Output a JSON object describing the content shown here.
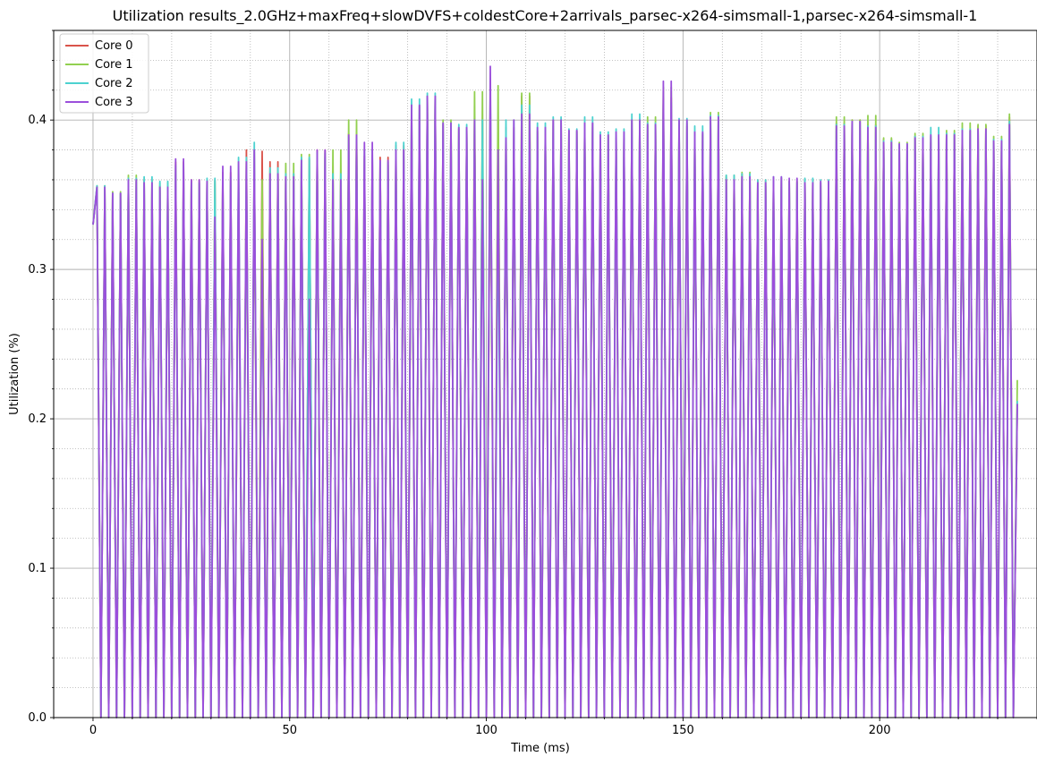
{
  "chart_data": {
    "type": "line",
    "title": "Utilization results_2.0GHz+maxFreq+slowDVFS+coldestCore+2arrivals_parsec-x264-simsmall-1,parsec-x264-simsmall-1",
    "xlabel": "Time (ms)",
    "ylabel": "Utilization (%)",
    "xlim": [
      -10,
      240
    ],
    "ylim": [
      0,
      0.46
    ],
    "xticks": [
      0,
      50,
      100,
      150,
      200
    ],
    "xtick_labels": [
      "0",
      "50",
      "100",
      "150",
      "200"
    ],
    "yticks": [
      0.0,
      0.1,
      0.2,
      0.3,
      0.4
    ],
    "ytick_labels": [
      "0.0",
      "0.1",
      "0.2",
      "0.3",
      "0.4"
    ],
    "grid": "major solid, minor dotted",
    "legend_position": "top-left",
    "pattern_note": "Each core alternates ~1 ms busy samples with ~1 ms idle (0) samples; peaks listed per window",
    "series": [
      {
        "name": "Core 0",
        "color": "#d9534a",
        "start": 0.33,
        "end": 0.21,
        "drop_at": 235,
        "peaks": [
          [
            1,
            0.355
          ],
          [
            5,
            0.351
          ],
          [
            9,
            0.359
          ],
          [
            13,
            0.36
          ],
          [
            17,
            0.356
          ],
          [
            21,
            0.372
          ],
          [
            25,
            0.36
          ],
          [
            29,
            0.36
          ],
          [
            30,
            0.374
          ],
          [
            33,
            0.365
          ],
          [
            37,
            0.36
          ],
          [
            39,
            0.38
          ],
          [
            41,
            0.379
          ],
          [
            45,
            0.372
          ],
          [
            49,
            0.364
          ],
          [
            53,
            0.374
          ],
          [
            57,
            0.38
          ],
          [
            61,
            0.362
          ],
          [
            65,
            0.391
          ],
          [
            69,
            0.376
          ],
          [
            70,
            0.306
          ],
          [
            73,
            0.375
          ],
          [
            77,
            0.383
          ],
          [
            81,
            0.41
          ],
          [
            85,
            0.416
          ],
          [
            89,
            0.397
          ],
          [
            93,
            0.394
          ],
          [
            97,
            0.4
          ],
          [
            98,
            0.428
          ],
          [
            100,
            0.427
          ],
          [
            102,
            0.418
          ],
          [
            105,
            0.395
          ],
          [
            109,
            0.416
          ],
          [
            113,
            0.393
          ],
          [
            117,
            0.4
          ],
          [
            121,
            0.393
          ],
          [
            125,
            0.398
          ],
          [
            129,
            0.39
          ],
          [
            133,
            0.388
          ],
          [
            137,
            0.4
          ],
          [
            141,
            0.396
          ],
          [
            145,
            0.415
          ],
          [
            149,
            0.396
          ],
          [
            153,
            0.391
          ],
          [
            157,
            0.4
          ],
          [
            161,
            0.362
          ],
          [
            165,
            0.364
          ],
          [
            169,
            0.36
          ],
          [
            173,
            0.361
          ],
          [
            177,
            0.359
          ],
          [
            181,
            0.36
          ],
          [
            185,
            0.358
          ],
          [
            189,
            0.398
          ],
          [
            193,
            0.4
          ],
          [
            197,
            0.397
          ],
          [
            201,
            0.387
          ],
          [
            205,
            0.383
          ],
          [
            209,
            0.389
          ],
          [
            213,
            0.385
          ],
          [
            217,
            0.391
          ],
          [
            221,
            0.393
          ],
          [
            225,
            0.396
          ],
          [
            229,
            0.386
          ],
          [
            233,
            0.402
          ]
        ]
      },
      {
        "name": "Core 1",
        "color": "#92d050",
        "start": 0.33,
        "end": 0.226,
        "drop_at": 235,
        "peaks": [
          [
            1,
            0.356
          ],
          [
            5,
            0.352
          ],
          [
            9,
            0.363
          ],
          [
            13,
            0.357
          ],
          [
            17,
            0.358
          ],
          [
            21,
            0.364
          ],
          [
            25,
            0.358
          ],
          [
            29,
            0.359
          ],
          [
            33,
            0.36
          ],
          [
            37,
            0.358
          ],
          [
            41,
            0.36
          ],
          [
            45,
            0.366
          ],
          [
            49,
            0.371
          ],
          [
            53,
            0.377
          ],
          [
            57,
            0.375
          ],
          [
            61,
            0.38
          ],
          [
            65,
            0.4
          ],
          [
            69,
            0.374
          ],
          [
            73,
            0.37
          ],
          [
            77,
            0.376
          ],
          [
            81,
            0.4
          ],
          [
            85,
            0.413
          ],
          [
            89,
            0.4
          ],
          [
            93,
            0.395
          ],
          [
            97,
            0.419
          ],
          [
            101,
            0.423
          ],
          [
            105,
            0.38
          ],
          [
            109,
            0.418
          ],
          [
            113,
            0.392
          ],
          [
            117,
            0.396
          ],
          [
            121,
            0.392
          ],
          [
            125,
            0.395
          ],
          [
            129,
            0.39
          ],
          [
            133,
            0.387
          ],
          [
            137,
            0.399
          ],
          [
            141,
            0.402
          ],
          [
            145,
            0.422
          ],
          [
            149,
            0.398
          ],
          [
            153,
            0.39
          ],
          [
            157,
            0.405
          ],
          [
            161,
            0.363
          ],
          [
            165,
            0.365
          ],
          [
            169,
            0.356
          ],
          [
            173,
            0.355
          ],
          [
            177,
            0.359
          ],
          [
            181,
            0.358
          ],
          [
            185,
            0.356
          ],
          [
            189,
            0.402
          ],
          [
            193,
            0.4
          ],
          [
            197,
            0.403
          ],
          [
            201,
            0.388
          ],
          [
            205,
            0.385
          ],
          [
            209,
            0.391
          ],
          [
            213,
            0.389
          ],
          [
            217,
            0.393
          ],
          [
            221,
            0.398
          ],
          [
            225,
            0.397
          ],
          [
            229,
            0.389
          ],
          [
            233,
            0.404
          ]
        ]
      },
      {
        "name": "Core 2",
        "color": "#4dd2d0",
        "start": 0.33,
        "end": 0.212,
        "drop_at": 235,
        "peaks": [
          [
            1,
            0.356
          ],
          [
            5,
            0.351
          ],
          [
            9,
            0.361
          ],
          [
            13,
            0.362
          ],
          [
            17,
            0.359
          ],
          [
            21,
            0.37
          ],
          [
            25,
            0.358
          ],
          [
            29,
            0.361
          ],
          [
            33,
            0.362
          ],
          [
            37,
            0.375
          ],
          [
            41,
            0.385
          ],
          [
            43,
            0.315
          ],
          [
            45,
            0.368
          ],
          [
            49,
            0.364
          ],
          [
            53,
            0.375
          ],
          [
            57,
            0.378
          ],
          [
            61,
            0.364
          ],
          [
            65,
            0.389
          ],
          [
            69,
            0.38
          ],
          [
            73,
            0.372
          ],
          [
            77,
            0.385
          ],
          [
            81,
            0.414
          ],
          [
            85,
            0.418
          ],
          [
            89,
            0.398
          ],
          [
            93,
            0.397
          ],
          [
            97,
            0.4
          ],
          [
            101,
            0.42
          ],
          [
            103,
            0.348
          ],
          [
            105,
            0.4
          ],
          [
            109,
            0.41
          ],
          [
            113,
            0.398
          ],
          [
            117,
            0.402
          ],
          [
            121,
            0.394
          ],
          [
            125,
            0.402
          ],
          [
            129,
            0.392
          ],
          [
            133,
            0.394
          ],
          [
            137,
            0.404
          ],
          [
            141,
            0.398
          ],
          [
            145,
            0.412
          ],
          [
            149,
            0.401
          ],
          [
            153,
            0.396
          ],
          [
            157,
            0.403
          ],
          [
            161,
            0.363
          ],
          [
            165,
            0.364
          ],
          [
            169,
            0.36
          ],
          [
            173,
            0.362
          ],
          [
            177,
            0.358
          ],
          [
            181,
            0.361
          ],
          [
            185,
            0.36
          ],
          [
            189,
            0.397
          ],
          [
            193,
            0.399
          ],
          [
            197,
            0.396
          ],
          [
            201,
            0.386
          ],
          [
            205,
            0.384
          ],
          [
            209,
            0.389
          ],
          [
            213,
            0.395
          ],
          [
            217,
            0.391
          ],
          [
            221,
            0.394
          ],
          [
            225,
            0.393
          ],
          [
            229,
            0.387
          ],
          [
            233,
            0.399
          ]
        ]
      },
      {
        "name": "Core 3",
        "color": "#9b4fdb",
        "start": 0.33,
        "end": 0.21,
        "drop_at": 235,
        "peaks": [
          [
            1,
            0.355
          ],
          [
            5,
            0.351
          ],
          [
            9,
            0.36
          ],
          [
            13,
            0.358
          ],
          [
            17,
            0.355
          ],
          [
            21,
            0.374
          ],
          [
            25,
            0.36
          ],
          [
            29,
            0.359
          ],
          [
            31,
            0.335
          ],
          [
            33,
            0.369
          ],
          [
            37,
            0.372
          ],
          [
            41,
            0.38
          ],
          [
            43,
            0.32
          ],
          [
            45,
            0.364
          ],
          [
            49,
            0.362
          ],
          [
            53,
            0.373
          ],
          [
            55,
            0.28
          ],
          [
            57,
            0.38
          ],
          [
            61,
            0.36
          ],
          [
            65,
            0.39
          ],
          [
            69,
            0.385
          ],
          [
            73,
            0.373
          ],
          [
            77,
            0.38
          ],
          [
            81,
            0.41
          ],
          [
            85,
            0.416
          ],
          [
            89,
            0.398
          ],
          [
            93,
            0.395
          ],
          [
            97,
            0.4
          ],
          [
            99,
            0.36
          ],
          [
            101,
            0.436
          ],
          [
            103,
            0.38
          ],
          [
            105,
            0.388
          ],
          [
            107,
            0.4
          ],
          [
            109,
            0.404
          ],
          [
            113,
            0.395
          ],
          [
            117,
            0.4
          ],
          [
            121,
            0.393
          ],
          [
            125,
            0.398
          ],
          [
            129,
            0.39
          ],
          [
            133,
            0.392
          ],
          [
            137,
            0.4
          ],
          [
            141,
            0.397
          ],
          [
            145,
            0.426
          ],
          [
            149,
            0.4
          ],
          [
            153,
            0.392
          ],
          [
            157,
            0.402
          ],
          [
            161,
            0.36
          ],
          [
            165,
            0.362
          ],
          [
            169,
            0.358
          ],
          [
            173,
            0.362
          ],
          [
            177,
            0.361
          ],
          [
            181,
            0.358
          ],
          [
            185,
            0.359
          ],
          [
            189,
            0.396
          ],
          [
            193,
            0.399
          ],
          [
            197,
            0.395
          ],
          [
            201,
            0.385
          ],
          [
            205,
            0.384
          ],
          [
            209,
            0.388
          ],
          [
            213,
            0.39
          ],
          [
            217,
            0.39
          ],
          [
            221,
            0.393
          ],
          [
            225,
            0.394
          ],
          [
            229,
            0.386
          ],
          [
            233,
            0.397
          ]
        ]
      }
    ]
  }
}
